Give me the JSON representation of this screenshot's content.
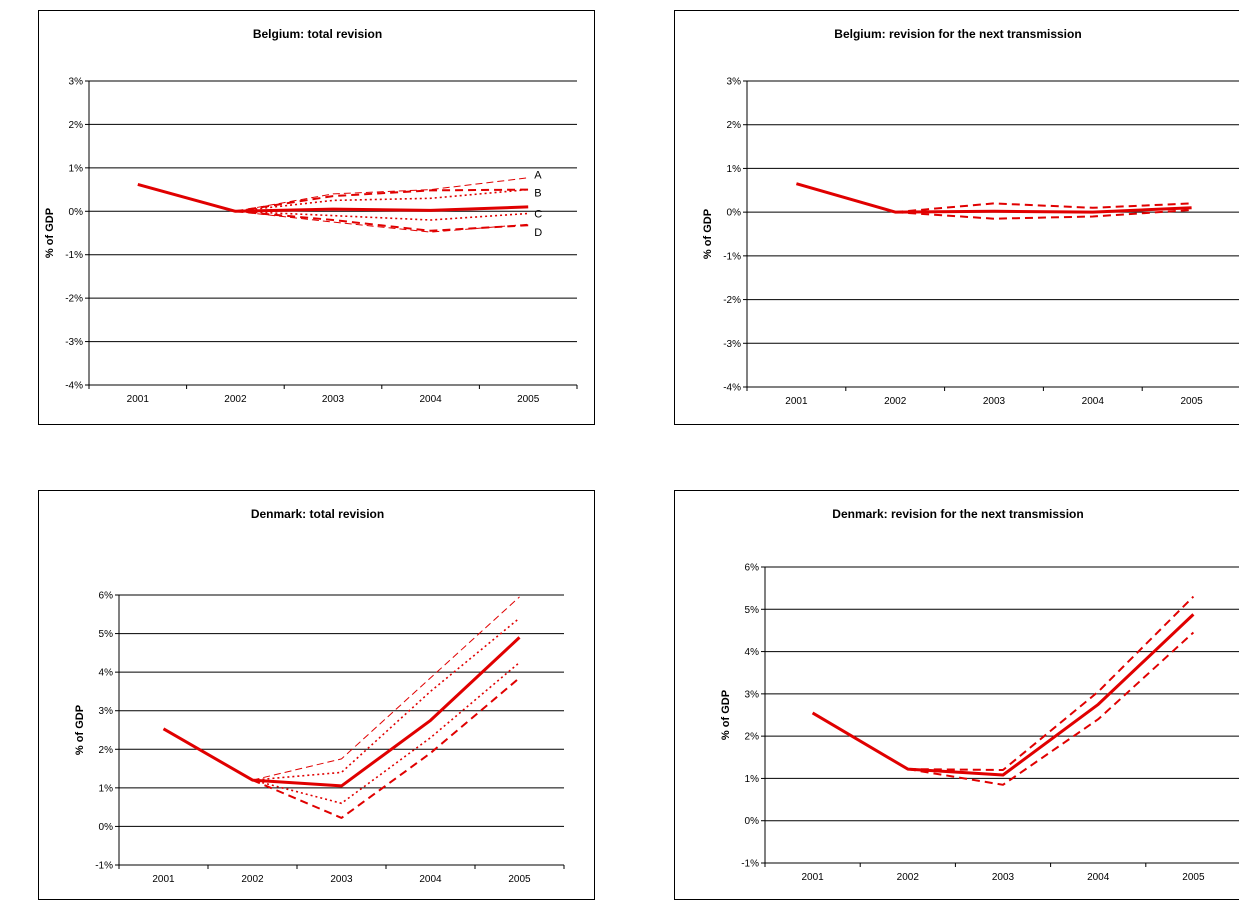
{
  "chart_data": [
    {
      "type": "line",
      "title": "Belgium: total revision",
      "ylabel": "% of GDP",
      "xlabel": "",
      "categories": [
        "2001",
        "2002",
        "2003",
        "2004",
        "2005"
      ],
      "ylim": [
        -4,
        3
      ],
      "yticks": [
        -4,
        -3,
        -2,
        -1,
        0,
        1,
        2,
        3
      ],
      "ytick_labels": [
        "-4%",
        "-3%",
        "-2%",
        "-1%",
        "0%",
        "1%",
        "2%",
        "3%"
      ],
      "grid": "horizontal",
      "legend": "none",
      "series": [
        {
          "style": "solid",
          "color": "#e00000",
          "values": [
            0.62,
            0.0,
            0.05,
            0.02,
            0.1
          ]
        },
        {
          "style": "dashed-thin",
          "color": "#e00000",
          "values": [
            null,
            0.0,
            0.4,
            0.5,
            0.77
          ]
        },
        {
          "style": "dashed",
          "color": "#e00000",
          "values": [
            null,
            0.0,
            0.35,
            0.48,
            0.5
          ]
        },
        {
          "style": "dotted",
          "color": "#e00000",
          "values": [
            null,
            0.0,
            0.25,
            0.3,
            0.5
          ]
        },
        {
          "style": "dotted",
          "color": "#e00000",
          "values": [
            null,
            0.0,
            -0.1,
            -0.2,
            -0.05
          ]
        },
        {
          "style": "dashed-thin",
          "color": "#e00000",
          "values": [
            null,
            0.0,
            -0.25,
            -0.48,
            -0.3
          ]
        },
        {
          "style": "dashed",
          "color": "#e00000",
          "values": [
            null,
            0.0,
            -0.2,
            -0.45,
            -0.32
          ]
        }
      ],
      "annotations": [
        {
          "text": "A",
          "x": "2005",
          "y": 0.85
        },
        {
          "text": "B",
          "x": "2005",
          "y": 0.43
        },
        {
          "text": "C",
          "x": "2005",
          "y": -0.05
        },
        {
          "text": "D",
          "x": "2005",
          "y": -0.48
        }
      ]
    },
    {
      "type": "line",
      "title": "Belgium: revision for the next transmission",
      "ylabel": "% of GDP",
      "xlabel": "",
      "categories": [
        "2001",
        "2002",
        "2003",
        "2004",
        "2005"
      ],
      "ylim": [
        -4,
        3
      ],
      "yticks": [
        -4,
        -3,
        -2,
        -1,
        0,
        1,
        2,
        3
      ],
      "ytick_labels": [
        "-4%",
        "-3%",
        "-2%",
        "-1%",
        "0%",
        "1%",
        "2%",
        "3%"
      ],
      "grid": "horizontal",
      "legend": "none",
      "series": [
        {
          "style": "solid",
          "color": "#e00000",
          "values": [
            0.65,
            0.0,
            0.02,
            0.0,
            0.1
          ]
        },
        {
          "style": "dashed",
          "color": "#e00000",
          "values": [
            null,
            0.0,
            0.2,
            0.1,
            0.2
          ]
        },
        {
          "style": "dashed",
          "color": "#e00000",
          "values": [
            null,
            0.0,
            -0.15,
            -0.1,
            0.05
          ]
        }
      ]
    },
    {
      "type": "line",
      "title": "Denmark: total revision",
      "ylabel": "% of GDP",
      "xlabel": "",
      "categories": [
        "2001",
        "2002",
        "2003",
        "2004",
        "2005"
      ],
      "ylim": [
        -1,
        6
      ],
      "yticks": [
        -1,
        0,
        1,
        2,
        3,
        4,
        5,
        6
      ],
      "ytick_labels": [
        "-1%",
        "0%",
        "1%",
        "2%",
        "3%",
        "4%",
        "5%",
        "6%"
      ],
      "grid": "horizontal",
      "legend": "none",
      "series": [
        {
          "style": "solid",
          "color": "#e00000",
          "values": [
            2.53,
            1.2,
            1.05,
            2.75,
            4.9
          ]
        },
        {
          "style": "dashed-thin",
          "color": "#e00000",
          "values": [
            null,
            1.2,
            1.75,
            3.85,
            5.95
          ]
        },
        {
          "style": "dotted",
          "color": "#e00000",
          "values": [
            null,
            1.2,
            1.4,
            3.5,
            5.4
          ]
        },
        {
          "style": "dotted",
          "color": "#e00000",
          "values": [
            null,
            1.2,
            0.6,
            2.3,
            4.25
          ]
        },
        {
          "style": "dashed",
          "color": "#e00000",
          "values": [
            null,
            1.2,
            0.22,
            1.9,
            3.85
          ]
        }
      ]
    },
    {
      "type": "line",
      "title": "Denmark: revision for the next transmission",
      "ylabel": "% of GDP",
      "xlabel": "",
      "categories": [
        "2001",
        "2002",
        "2003",
        "2004",
        "2005"
      ],
      "ylim": [
        -1,
        6
      ],
      "yticks": [
        -1,
        0,
        1,
        2,
        3,
        4,
        5,
        6
      ],
      "ytick_labels": [
        "-1%",
        "0%",
        "1%",
        "2%",
        "3%",
        "4%",
        "5%",
        "6%"
      ],
      "grid": "horizontal",
      "legend": "none",
      "series": [
        {
          "style": "solid",
          "color": "#e00000",
          "values": [
            2.55,
            1.22,
            1.08,
            2.75,
            4.88
          ]
        },
        {
          "style": "dashed",
          "color": "#e00000",
          "values": [
            null,
            1.22,
            1.2,
            3.05,
            5.3
          ]
        },
        {
          "style": "dashed",
          "color": "#e00000",
          "values": [
            null,
            1.22,
            0.85,
            2.4,
            4.45
          ]
        }
      ]
    }
  ]
}
